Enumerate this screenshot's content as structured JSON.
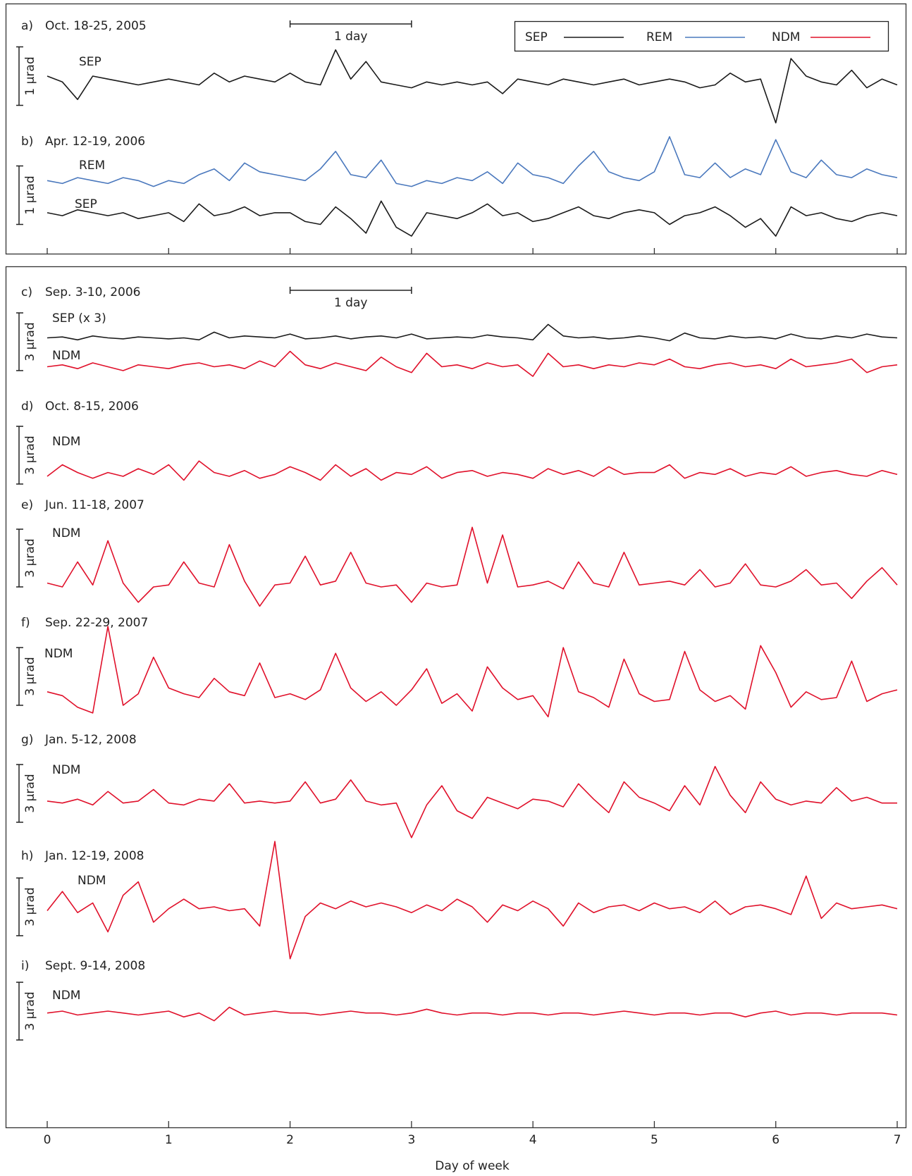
{
  "chart_data": {
    "type": "line",
    "xlabel": "Day of week",
    "xlim": [
      0,
      7
    ],
    "xticks": [
      0,
      1,
      2,
      3,
      4,
      5,
      6,
      7
    ],
    "x": [
      0,
      0.125,
      0.25,
      0.375,
      0.5,
      0.625,
      0.75,
      0.875,
      1,
      1.125,
      1.25,
      1.375,
      1.5,
      1.625,
      1.75,
      1.875,
      2,
      2.125,
      2.25,
      2.375,
      2.5,
      2.625,
      2.75,
      2.875,
      3,
      3.125,
      3.25,
      3.375,
      3.5,
      3.625,
      3.75,
      3.875,
      4,
      4.125,
      4.25,
      4.375,
      4.5,
      4.625,
      4.75,
      4.875,
      5,
      5.125,
      5.25,
      5.375,
      5.5,
      5.625,
      5.75,
      5.875,
      6,
      6.125,
      6.25,
      6.375,
      6.5,
      6.625,
      6.75,
      6.875,
      7
    ],
    "legend": [
      {
        "name": "SEP",
        "color": "#1a1a1a"
      },
      {
        "name": "REM",
        "color": "#4a78bd"
      },
      {
        "name": "NDM",
        "color": "#e0102a"
      }
    ],
    "panels": [
      {
        "label": "a)",
        "title": "Oct. 18-25, 2005",
        "ylim": [
          -1,
          1
        ],
        "scale_bar": {
          "label": "1 µrad",
          "from": -0.5,
          "to": 0.5
        },
        "day_bar": {
          "label": "1 day",
          "from": 2,
          "to": 3
        },
        "series": [
          {
            "name": "SEP",
            "color": "#1a1a1a",
            "values": [
              0.0,
              -0.1,
              -0.4,
              0.0,
              -0.05,
              -0.1,
              -0.15,
              -0.1,
              -0.05,
              -0.1,
              -0.15,
              0.05,
              -0.1,
              0.0,
              -0.05,
              -0.1,
              0.05,
              -0.1,
              -0.15,
              0.45,
              -0.05,
              0.25,
              -0.1,
              -0.15,
              -0.2,
              -0.1,
              -0.15,
              -0.1,
              -0.15,
              -0.1,
              -0.3,
              -0.05,
              -0.1,
              -0.15,
              -0.05,
              -0.1,
              -0.15,
              -0.1,
              -0.05,
              -0.15,
              -0.1,
              -0.05,
              -0.1,
              -0.2,
              -0.15,
              0.05,
              -0.1,
              -0.05,
              -0.8,
              0.3,
              0.0,
              -0.1,
              -0.15,
              0.1,
              -0.2,
              -0.05,
              -0.15
            ]
          }
        ]
      },
      {
        "label": "b)",
        "title": "Apr. 12-19, 2006",
        "ylim": [
          -0.9,
          1.1
        ],
        "scale_bar": {
          "label": "1 µrad",
          "from": -0.5,
          "to": 0.5
        },
        "series": [
          {
            "name": "REM",
            "color": "#4a78bd",
            "values": [
              0.25,
              0.2,
              0.3,
              0.25,
              0.2,
              0.3,
              0.25,
              0.15,
              0.25,
              0.2,
              0.35,
              0.45,
              0.25,
              0.55,
              0.4,
              0.35,
              0.3,
              0.25,
              0.45,
              0.75,
              0.35,
              0.3,
              0.6,
              0.2,
              0.15,
              0.25,
              0.2,
              0.3,
              0.25,
              0.4,
              0.2,
              0.55,
              0.35,
              0.3,
              0.2,
              0.5,
              0.75,
              0.4,
              0.3,
              0.25,
              0.4,
              1.0,
              0.35,
              0.3,
              0.55,
              0.3,
              0.45,
              0.35,
              0.95,
              0.4,
              0.3,
              0.6,
              0.35,
              0.3,
              0.45,
              0.35,
              0.3
            ]
          },
          {
            "name": "SEP",
            "color": "#1a1a1a",
            "values": [
              -0.3,
              -0.35,
              -0.25,
              -0.3,
              -0.35,
              -0.3,
              -0.4,
              -0.35,
              -0.3,
              -0.45,
              -0.15,
              -0.35,
              -0.3,
              -0.2,
              -0.35,
              -0.3,
              -0.3,
              -0.45,
              -0.5,
              -0.2,
              -0.4,
              -0.65,
              -0.1,
              -0.55,
              -0.7,
              -0.3,
              -0.35,
              -0.4,
              -0.3,
              -0.15,
              -0.35,
              -0.3,
              -0.45,
              -0.4,
              -0.3,
              -0.2,
              -0.35,
              -0.4,
              -0.3,
              -0.25,
              -0.3,
              -0.5,
              -0.35,
              -0.3,
              -0.2,
              -0.35,
              -0.55,
              -0.4,
              -0.7,
              -0.2,
              -0.35,
              -0.3,
              -0.4,
              -0.45,
              -0.35,
              -0.3,
              -0.35
            ]
          }
        ]
      },
      {
        "label": "c)",
        "title": "Sep. 3-10, 2006",
        "ylim": [
          -2.8,
          2.8
        ],
        "scale_bar": {
          "label": "3 µrad",
          "from": -1.5,
          "to": 1.5
        },
        "day_bar": {
          "label": "1 day",
          "from": 2,
          "to": 3
        },
        "series": [
          {
            "name": "SEP (x 3)",
            "color": "#1a1a1a",
            "values": [
              0.2,
              0.25,
              0.1,
              0.3,
              0.2,
              0.15,
              0.25,
              0.2,
              0.15,
              0.2,
              0.1,
              0.5,
              0.2,
              0.3,
              0.25,
              0.2,
              0.4,
              0.15,
              0.2,
              0.3,
              0.15,
              0.25,
              0.3,
              0.2,
              0.4,
              0.15,
              0.2,
              0.25,
              0.2,
              0.35,
              0.25,
              0.2,
              0.1,
              0.9,
              0.3,
              0.2,
              0.25,
              0.15,
              0.2,
              0.3,
              0.2,
              0.05,
              0.45,
              0.2,
              0.15,
              0.3,
              0.2,
              0.25,
              0.15,
              0.4,
              0.2,
              0.15,
              0.3,
              0.2,
              0.4,
              0.25,
              0.2
            ]
          },
          {
            "name": "NDM",
            "color": "#e0102a",
            "values": [
              -1.3,
              -1.2,
              -1.4,
              -1.1,
              -1.3,
              -1.5,
              -1.2,
              -1.3,
              -1.4,
              -1.2,
              -1.1,
              -1.3,
              -1.2,
              -1.4,
              -1.0,
              -1.3,
              -0.5,
              -1.2,
              -1.4,
              -1.1,
              -1.3,
              -1.5,
              -0.8,
              -1.3,
              -1.6,
              -0.6,
              -1.3,
              -1.2,
              -1.4,
              -1.1,
              -1.3,
              -1.2,
              -1.8,
              -0.6,
              -1.3,
              -1.2,
              -1.4,
              -1.2,
              -1.3,
              -1.1,
              -1.2,
              -0.9,
              -1.3,
              -1.4,
              -1.2,
              -1.1,
              -1.3,
              -1.2,
              -1.4,
              -0.9,
              -1.3,
              -1.2,
              -1.1,
              -0.9,
              -1.6,
              -1.3,
              -1.2
            ]
          }
        ]
      },
      {
        "label": "d)",
        "title": "Oct. 8-15, 2006",
        "ylim": [
          -2.8,
          2.8
        ],
        "scale_bar": {
          "label": "3 µrad",
          "from": -1.5,
          "to": 1.5
        },
        "series": [
          {
            "name": "NDM",
            "color": "#e0102a",
            "values": [
              -1.1,
              -0.5,
              -0.9,
              -1.2,
              -0.9,
              -1.1,
              -0.7,
              -1.0,
              -0.5,
              -1.3,
              -0.3,
              -0.9,
              -1.1,
              -0.8,
              -1.2,
              -1.0,
              -0.6,
              -0.9,
              -1.3,
              -0.5,
              -1.1,
              -0.7,
              -1.3,
              -0.9,
              -1.0,
              -0.6,
              -1.2,
              -0.9,
              -0.8,
              -1.1,
              -0.9,
              -1.0,
              -1.2,
              -0.7,
              -1.0,
              -0.8,
              -1.1,
              -0.6,
              -1.0,
              -0.9,
              -0.9,
              -0.5,
              -1.2,
              -0.9,
              -1.0,
              -0.7,
              -1.1,
              -0.9,
              -1.0,
              -0.6,
              -1.1,
              -0.9,
              -0.8,
              -1.0,
              -1.1,
              -0.8,
              -1.0
            ]
          }
        ]
      },
      {
        "label": "e)",
        "title": "Jun. 11-18, 2007",
        "ylim": [
          -2.8,
          2.8
        ],
        "scale_bar": {
          "label": "3 µrad",
          "from": -1.5,
          "to": 1.5
        },
        "series": [
          {
            "name": "NDM",
            "color": "#e0102a",
            "values": [
              -1.3,
              -1.5,
              -0.2,
              -1.4,
              0.9,
              -1.3,
              -2.3,
              -1.5,
              -1.4,
              -0.2,
              -1.3,
              -1.5,
              0.7,
              -1.2,
              -2.5,
              -1.4,
              -1.3,
              0.1,
              -1.4,
              -1.2,
              0.3,
              -1.3,
              -1.5,
              -1.4,
              -2.3,
              -1.3,
              -1.5,
              -1.4,
              1.6,
              -1.3,
              1.2,
              -1.5,
              -1.4,
              -1.2,
              -1.6,
              -0.2,
              -1.3,
              -1.5,
              0.3,
              -1.4,
              -1.3,
              -1.2,
              -1.4,
              -0.6,
              -1.5,
              -1.3,
              -0.3,
              -1.4,
              -1.5,
              -1.2,
              -0.6,
              -1.4,
              -1.3,
              -2.1,
              -1.2,
              -0.5,
              -1.4
            ]
          }
        ]
      },
      {
        "label": "f)",
        "title": "Sep. 22-29, 2007",
        "ylim": [
          -2.8,
          2.8
        ],
        "scale_bar": {
          "label": "3 µrad",
          "from": -1.5,
          "to": 1.5
        },
        "series": [
          {
            "name": "NDM",
            "color": "#e0102a",
            "values": [
              -0.8,
              -1.0,
              -1.6,
              -1.9,
              2.6,
              -1.5,
              -0.9,
              1.0,
              -0.6,
              -0.9,
              -1.1,
              -0.1,
              -0.8,
              -1.0,
              0.7,
              -1.1,
              -0.9,
              -1.2,
              -0.7,
              1.2,
              -0.6,
              -1.3,
              -0.8,
              -1.5,
              -0.7,
              0.4,
              -1.4,
              -0.9,
              -1.8,
              0.5,
              -0.6,
              -1.2,
              -1.0,
              -2.1,
              1.5,
              -0.8,
              -1.1,
              -1.6,
              0.9,
              -0.9,
              -1.3,
              -1.2,
              1.3,
              -0.7,
              -1.3,
              -1.0,
              -1.7,
              1.6,
              0.2,
              -1.6,
              -0.8,
              -1.2,
              -1.1,
              0.8,
              -1.3,
              -0.9,
              -0.7
            ]
          }
        ]
      },
      {
        "label": "g)",
        "title": "Jan. 5-12, 2008",
        "ylim": [
          -2.8,
          2.8
        ],
        "scale_bar": {
          "label": "3 µrad",
          "from": -1.5,
          "to": 1.5
        },
        "series": [
          {
            "name": "NDM",
            "color": "#e0102a",
            "values": [
              -0.4,
              -0.5,
              -0.3,
              -0.6,
              0.1,
              -0.5,
              -0.4,
              0.2,
              -0.5,
              -0.6,
              -0.3,
              -0.4,
              0.5,
              -0.5,
              -0.4,
              -0.5,
              -0.4,
              0.6,
              -0.5,
              -0.3,
              0.7,
              -0.4,
              -0.6,
              -0.5,
              -2.3,
              -0.6,
              0.4,
              -0.9,
              -1.3,
              -0.2,
              -0.5,
              -0.8,
              -0.3,
              -0.4,
              -0.7,
              0.5,
              -0.3,
              -1.0,
              0.6,
              -0.2,
              -0.5,
              -0.9,
              0.4,
              -0.6,
              1.4,
              -0.1,
              -1.0,
              0.6,
              -0.3,
              -0.6,
              -0.4,
              -0.5,
              0.3,
              -0.4,
              -0.2,
              -0.5,
              -0.5
            ]
          }
        ]
      },
      {
        "label": "h)",
        "title": "Jan. 12-19, 2008",
        "ylim": [
          -3.6,
          3.6
        ],
        "scale_bar": {
          "label": "3 µrad",
          "from": -1.5,
          "to": 1.5
        },
        "series": [
          {
            "name": "NDM",
            "color": "#e0102a",
            "values": [
              -0.2,
              0.8,
              -0.3,
              0.2,
              -1.3,
              0.6,
              1.3,
              -0.8,
              -0.1,
              0.4,
              -0.1,
              0.0,
              -0.2,
              -0.1,
              -1.0,
              3.4,
              -2.7,
              -0.5,
              0.2,
              -0.1,
              0.3,
              0.0,
              0.2,
              0.0,
              -0.3,
              0.1,
              -0.2,
              0.4,
              0.0,
              -0.8,
              0.1,
              -0.2,
              0.3,
              -0.1,
              -1.0,
              0.2,
              -0.3,
              0.0,
              0.1,
              -0.2,
              0.2,
              -0.1,
              0.0,
              -0.3,
              0.3,
              -0.4,
              0.0,
              0.1,
              -0.1,
              -0.4,
              1.6,
              -0.6,
              0.2,
              -0.1,
              0.0,
              0.1,
              -0.1
            ]
          }
        ]
      },
      {
        "label": "i)",
        "title": "Sept. 9-14, 2008",
        "ylim": [
          -2.8,
          2.8
        ],
        "scale_bar": {
          "label": "3 µrad",
          "from": -1.5,
          "to": 1.5
        },
        "series": [
          {
            "name": "NDM",
            "color": "#e0102a",
            "values": [
              -0.1,
              0.0,
              -0.2,
              -0.1,
              0.0,
              -0.1,
              -0.2,
              -0.1,
              0.0,
              -0.3,
              -0.1,
              -0.5,
              0.2,
              -0.2,
              -0.1,
              0.0,
              -0.1,
              -0.1,
              -0.2,
              -0.1,
              0.0,
              -0.1,
              -0.1,
              -0.2,
              -0.1,
              0.1,
              -0.1,
              -0.2,
              -0.1,
              -0.1,
              -0.2,
              -0.1,
              -0.1,
              -0.2,
              -0.1,
              -0.1,
              -0.2,
              -0.1,
              0.0,
              -0.1,
              -0.2,
              -0.1,
              -0.1,
              -0.2,
              -0.1,
              -0.1,
              -0.3,
              -0.1,
              0.0,
              -0.2,
              -0.1,
              -0.1,
              -0.2,
              -0.1,
              -0.1,
              -0.1,
              -0.2
            ]
          }
        ]
      }
    ]
  }
}
